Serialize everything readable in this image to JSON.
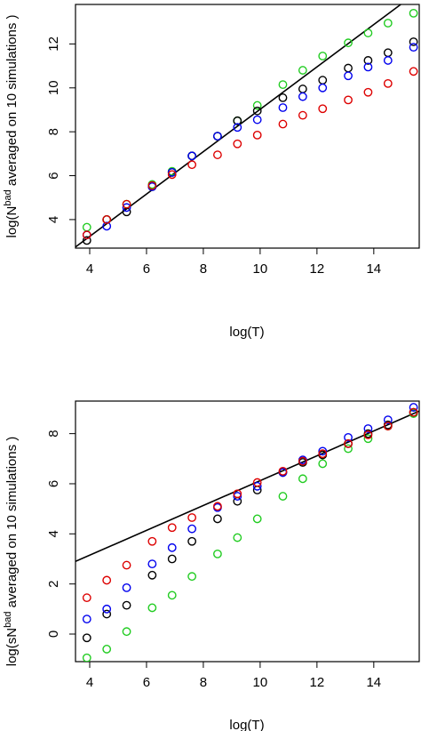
{
  "chart_data": [
    {
      "type": "scatter",
      "title": "",
      "xlabel": "log(T)",
      "ylabel_prefix": "log(N",
      "ylabel_sup": "bad",
      "ylabel_suffix": " averaged on 10 simulations )",
      "xlim": [
        3.5,
        15.6
      ],
      "ylim": [
        2.7,
        13.8
      ],
      "xticks": [
        4,
        6,
        8,
        10,
        12,
        14
      ],
      "yticks": [
        4,
        6,
        8,
        10,
        12
      ],
      "grid": false,
      "legend": "none",
      "x": [
        3.9,
        4.6,
        5.3,
        6.2,
        6.9,
        7.6,
        8.5,
        9.2,
        9.9,
        10.8,
        11.5,
        12.2,
        13.1,
        13.8,
        14.5,
        15.4
      ],
      "series": [
        {
          "color": "#22cc22",
          "values": [
            3.65,
            4.0,
            4.7,
            5.6,
            6.2,
            6.9,
            7.8,
            8.5,
            9.2,
            10.15,
            10.8,
            11.45,
            12.05,
            12.5,
            12.95,
            13.4
          ]
        },
        {
          "color": "#000000",
          "values": [
            3.05,
            4.0,
            4.35,
            5.5,
            6.15,
            6.9,
            7.8,
            8.5,
            8.95,
            9.55,
            9.95,
            10.35,
            10.9,
            11.25,
            11.6,
            12.1
          ]
        },
        {
          "color": "#0000ee",
          "values": [
            3.3,
            3.7,
            4.55,
            5.5,
            6.15,
            6.9,
            7.8,
            8.2,
            8.55,
            9.1,
            9.6,
            10.0,
            10.55,
            10.95,
            11.25,
            11.85
          ]
        },
        {
          "color": "#dd0000",
          "values": [
            3.3,
            4.0,
            4.7,
            5.55,
            6.05,
            6.5,
            6.95,
            7.45,
            7.85,
            8.35,
            8.75,
            9.05,
            9.45,
            9.8,
            10.2,
            10.75
          ]
        }
      ],
      "reference_line": {
        "color": "#000000",
        "x": [
          3.5,
          14.95
        ],
        "y": [
          2.75,
          13.8
        ]
      }
    },
    {
      "type": "scatter",
      "title": "",
      "xlabel": "log(T)",
      "ylabel_prefix": "log(sN",
      "ylabel_sup": "bad",
      "ylabel_suffix": " averaged on 10 simulations )",
      "xlim": [
        3.5,
        15.6
      ],
      "ylim": [
        -1.1,
        9.3
      ],
      "xticks": [
        4,
        6,
        8,
        10,
        12,
        14
      ],
      "yticks": [
        0,
        2,
        4,
        6,
        8
      ],
      "grid": false,
      "legend": "none",
      "x": [
        3.9,
        4.6,
        5.3,
        6.2,
        6.9,
        7.6,
        8.5,
        9.2,
        9.9,
        10.8,
        11.5,
        12.2,
        13.1,
        13.8,
        14.5,
        15.4
      ],
      "series": [
        {
          "color": "#22cc22",
          "values": [
            -0.95,
            -0.6,
            0.1,
            1.05,
            1.55,
            2.3,
            3.2,
            3.85,
            4.6,
            5.5,
            6.2,
            6.8,
            7.4,
            7.8,
            8.3,
            8.8
          ]
        },
        {
          "color": "#000000",
          "values": [
            -0.15,
            0.8,
            1.15,
            2.35,
            3.0,
            3.7,
            4.6,
            5.3,
            5.75,
            6.45,
            6.85,
            7.15,
            7.6,
            8.0,
            8.35,
            8.85
          ]
        },
        {
          "color": "#0000ee",
          "values": [
            0.6,
            1.0,
            1.85,
            2.8,
            3.45,
            4.2,
            5.05,
            5.5,
            5.9,
            6.45,
            6.95,
            7.3,
            7.85,
            8.2,
            8.55,
            9.05
          ]
        },
        {
          "color": "#dd0000",
          "values": [
            1.45,
            2.15,
            2.75,
            3.7,
            4.25,
            4.65,
            5.1,
            5.6,
            6.05,
            6.5,
            6.9,
            7.2,
            7.6,
            7.95,
            8.3,
            8.85
          ]
        }
      ],
      "reference_line": {
        "color": "#000000",
        "x": [
          3.5,
          15.6
        ],
        "y": [
          2.9,
          8.9
        ]
      }
    }
  ]
}
